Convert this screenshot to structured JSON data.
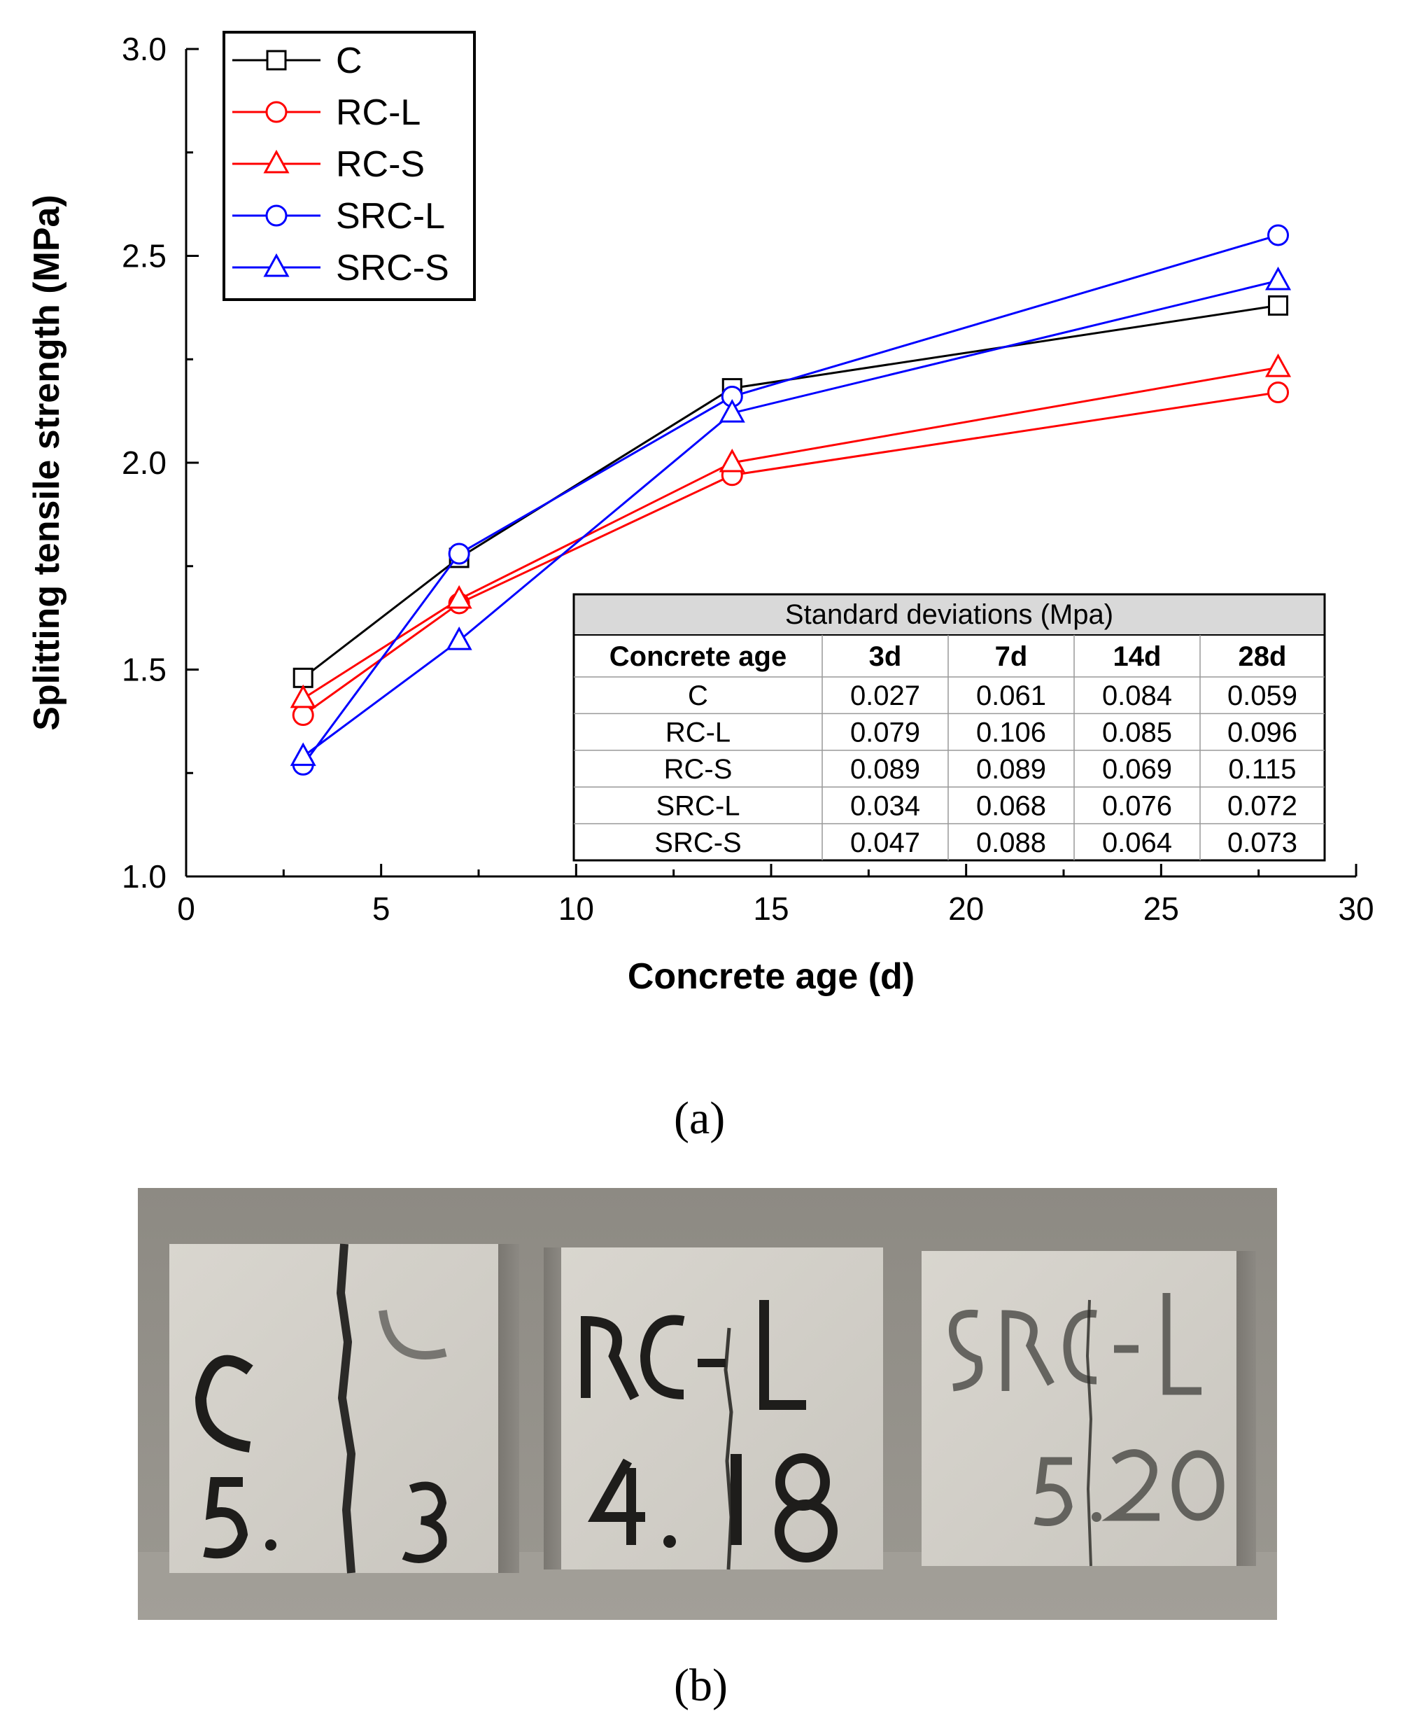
{
  "chart_data": {
    "type": "line",
    "xlabel": "Concrete age (d)",
    "ylabel": "Splitting tensile strength (MPa)",
    "xlim": [
      0,
      30
    ],
    "ylim": [
      1.0,
      3.0
    ],
    "x_ticks": [
      "0",
      "5",
      "10",
      "15",
      "20",
      "25",
      "30"
    ],
    "y_ticks": [
      "1.0",
      "1.5",
      "2.0",
      "2.5",
      "3.0"
    ],
    "x": [
      3,
      7,
      14,
      28
    ],
    "legend_position": "top-left",
    "series": [
      {
        "name": "C",
        "values": [
          1.48,
          1.77,
          2.18,
          2.38
        ],
        "color": "#000000",
        "marker": "square"
      },
      {
        "name": "RC-L",
        "values": [
          1.39,
          1.66,
          1.97,
          2.17
        ],
        "color": "#ff0000",
        "marker": "circle"
      },
      {
        "name": "RC-S",
        "values": [
          1.43,
          1.67,
          2.0,
          2.23
        ],
        "color": "#ff0000",
        "marker": "triangle"
      },
      {
        "name": "SRC-L",
        "values": [
          1.27,
          1.78,
          2.16,
          2.55
        ],
        "color": "#0000ff",
        "marker": "circle"
      },
      {
        "name": "SRC-S",
        "values": [
          1.29,
          1.57,
          2.12,
          2.44
        ],
        "color": "#0000ff",
        "marker": "triangle"
      }
    ],
    "inset_table": {
      "title": "Standard deviations (Mpa)",
      "header": [
        "Concrete age",
        "3d",
        "7d",
        "14d",
        "28d"
      ],
      "rows": [
        [
          "C",
          "0.027",
          "0.061",
          "0.084",
          "0.059"
        ],
        [
          "RC-L",
          "0.079",
          "0.106",
          "0.085",
          "0.096"
        ],
        [
          "RC-S",
          "0.089",
          "0.089",
          "0.069",
          "0.115"
        ],
        [
          "SRC-L",
          "0.034",
          "0.068",
          "0.076",
          "0.072"
        ],
        [
          "SRC-S",
          "0.047",
          "0.088",
          "0.064",
          "0.073"
        ]
      ]
    }
  },
  "panels": {
    "a_label": "(a)",
    "b_label": "(b)"
  },
  "photo": {
    "cube_labels": [
      {
        "id": "C",
        "value": "5.13"
      },
      {
        "id": "RC-L",
        "value": "4.18"
      },
      {
        "id": "SRC-L",
        "value": "5.20"
      }
    ]
  }
}
